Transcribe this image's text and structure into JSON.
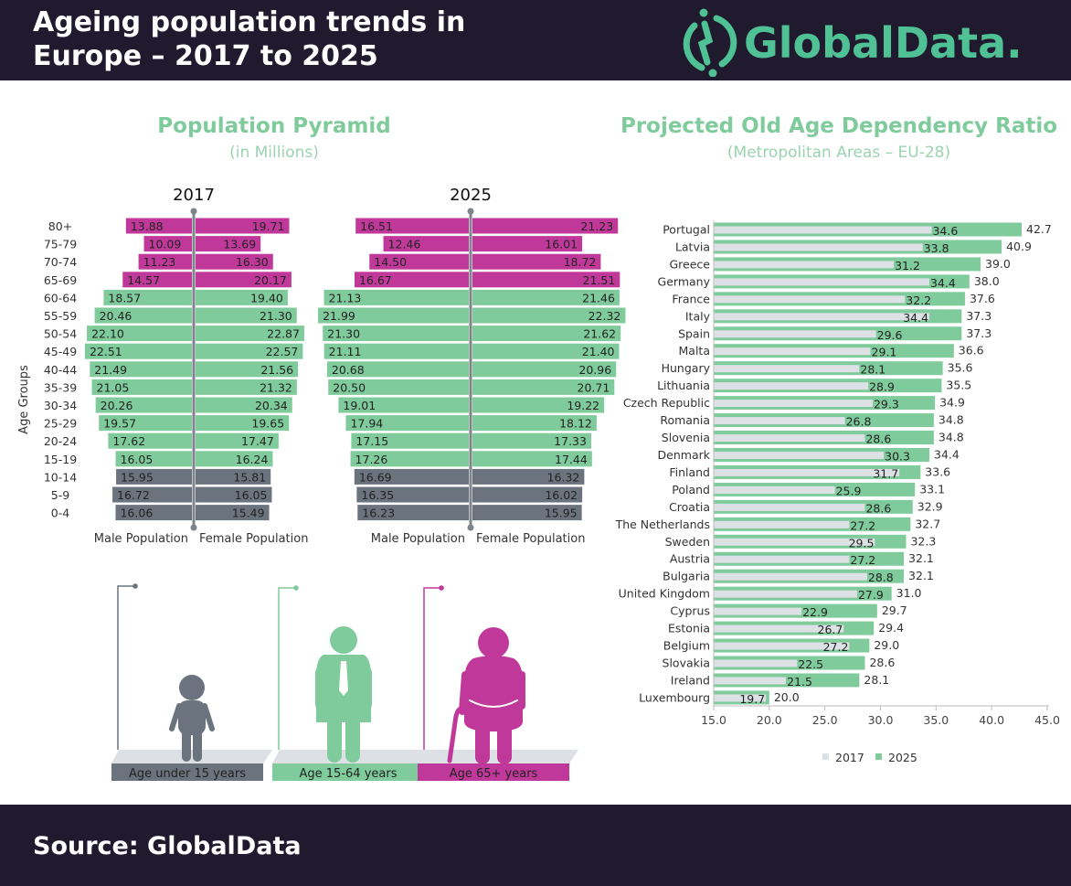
{
  "header": {
    "title_line1": "Ageing population trends in",
    "title_line2": "Europe  – 2017 to 2025",
    "logo_text": "GlobalData."
  },
  "footer": {
    "source": "Source: GlobalData"
  },
  "colors": {
    "elderly": "#c0399a",
    "working": "#7fcb9b",
    "young": "#6b747e",
    "bar2017": "#dde0e4",
    "bar2025": "#7fcb9b",
    "title": "#7fcb9b",
    "header_bg": "#201a2e"
  },
  "chart_data": [
    {
      "type": "bar",
      "orientation": "horizontal-pyramid",
      "title": "Population Pyramid",
      "subtitle": "(in Millions)",
      "ylabel": "Age Groups",
      "male_label": "Male Population",
      "female_label": "Female Population",
      "categories": [
        "80+",
        "75-79",
        "70-74",
        "65-69",
        "60-64",
        "55-59",
        "50-54",
        "45-49",
        "40-44",
        "35-39",
        "30-34",
        "25-29",
        "20-24",
        "15-19",
        "10-14",
        "5-9",
        "0-4"
      ],
      "groups": [
        "elderly",
        "elderly",
        "elderly",
        "elderly",
        "working",
        "working",
        "working",
        "working",
        "working",
        "working",
        "working",
        "working",
        "working",
        "working",
        "young",
        "young",
        "young"
      ],
      "panels": [
        {
          "year": "2017",
          "male": [
            "13.88",
            "10.09",
            "11.23",
            "14.57",
            "18.57",
            "20.46",
            "22.10",
            "22.51",
            "21.49",
            "21.05",
            "20.26",
            "19.57",
            "17.62",
            "16.05",
            "15.95",
            "16.72",
            "16.06"
          ],
          "female": [
            "19.71",
            "13.69",
            "16.30",
            "20.17",
            "19.40",
            "21.30",
            "22.87",
            "22.57",
            "21.56",
            "21.32",
            "20.34",
            "19.65",
            "17.47",
            "16.24",
            "15.81",
            "16.05",
            "15.49"
          ]
        },
        {
          "year": "2025",
          "male": [
            "16.51",
            "12.46",
            "14.50",
            "16.67",
            "21.13",
            "21.99",
            "21.30",
            "21.11",
            "20.68",
            "20.50",
            "19.01",
            "17.94",
            "17.15",
            "17.26",
            "16.69",
            "16.35",
            "16.23"
          ],
          "female": [
            "21.23",
            "16.01",
            "18.72",
            "21.51",
            "21.46",
            "22.32",
            "21.62",
            "21.40",
            "20.96",
            "20.71",
            "19.22",
            "18.12",
            "17.33",
            "17.44",
            "16.32",
            "16.02",
            "15.95"
          ]
        }
      ]
    },
    {
      "type": "bar",
      "orientation": "horizontal",
      "title": "Projected Old Age Dependency Ratio",
      "subtitle": "(Metropolitan Areas – EU-28)",
      "xlim": [
        15,
        45
      ],
      "xticks": [
        "15.0",
        "20.0",
        "25.0",
        "30.0",
        "35.0",
        "40.0",
        "45.0"
      ],
      "legend": "bottom",
      "categories": [
        "Portugal",
        "Latvia",
        "Greece",
        "Germany",
        "France",
        "Italy",
        "Spain",
        "Malta",
        "Hungary",
        "Lithuania",
        "Czech Republic",
        "Romania",
        "Slovenia",
        "Denmark",
        "Finland",
        "Poland",
        "Croatia",
        "The Netherlands",
        "Sweden",
        "Austria",
        "Bulgaria",
        "United Kingdom",
        "Cyprus",
        "Estonia",
        "Belgium",
        "Slovakia",
        "Ireland",
        "Luxembourg"
      ],
      "series": [
        {
          "name": "2017",
          "values": [
            "34.6",
            "33.8",
            "31.2",
            "34.4",
            "32.2",
            "34.4",
            "29.6",
            "29.1",
            "28.1",
            "28.9",
            "29.3",
            "26.8",
            "28.6",
            "30.3",
            "31.7",
            "25.9",
            "28.6",
            "27.2",
            "29.5",
            "27.2",
            "28.8",
            "27.9",
            "22.9",
            "26.7",
            "27.2",
            "22.5",
            "21.5",
            "19.7"
          ]
        },
        {
          "name": "2025",
          "values": [
            "42.7",
            "40.9",
            "39.0",
            "38.0",
            "37.6",
            "37.3",
            "37.3",
            "36.6",
            "35.6",
            "35.5",
            "34.9",
            "34.8",
            "34.8",
            "34.4",
            "33.6",
            "33.1",
            "32.9",
            "32.7",
            "32.3",
            "32.1",
            "32.1",
            "31.0",
            "29.7",
            "29.4",
            "29.0",
            "28.6",
            "28.1",
            "20.0"
          ]
        }
      ]
    }
  ],
  "legend_figures": [
    {
      "label": "Age under 15 years",
      "group": "young",
      "icon": "child-icon"
    },
    {
      "label": "Age 15-64 years",
      "group": "working",
      "icon": "adult-man-icon"
    },
    {
      "label": "Age 65+ years",
      "group": "elderly",
      "icon": "elderly-person-cane-icon"
    }
  ]
}
